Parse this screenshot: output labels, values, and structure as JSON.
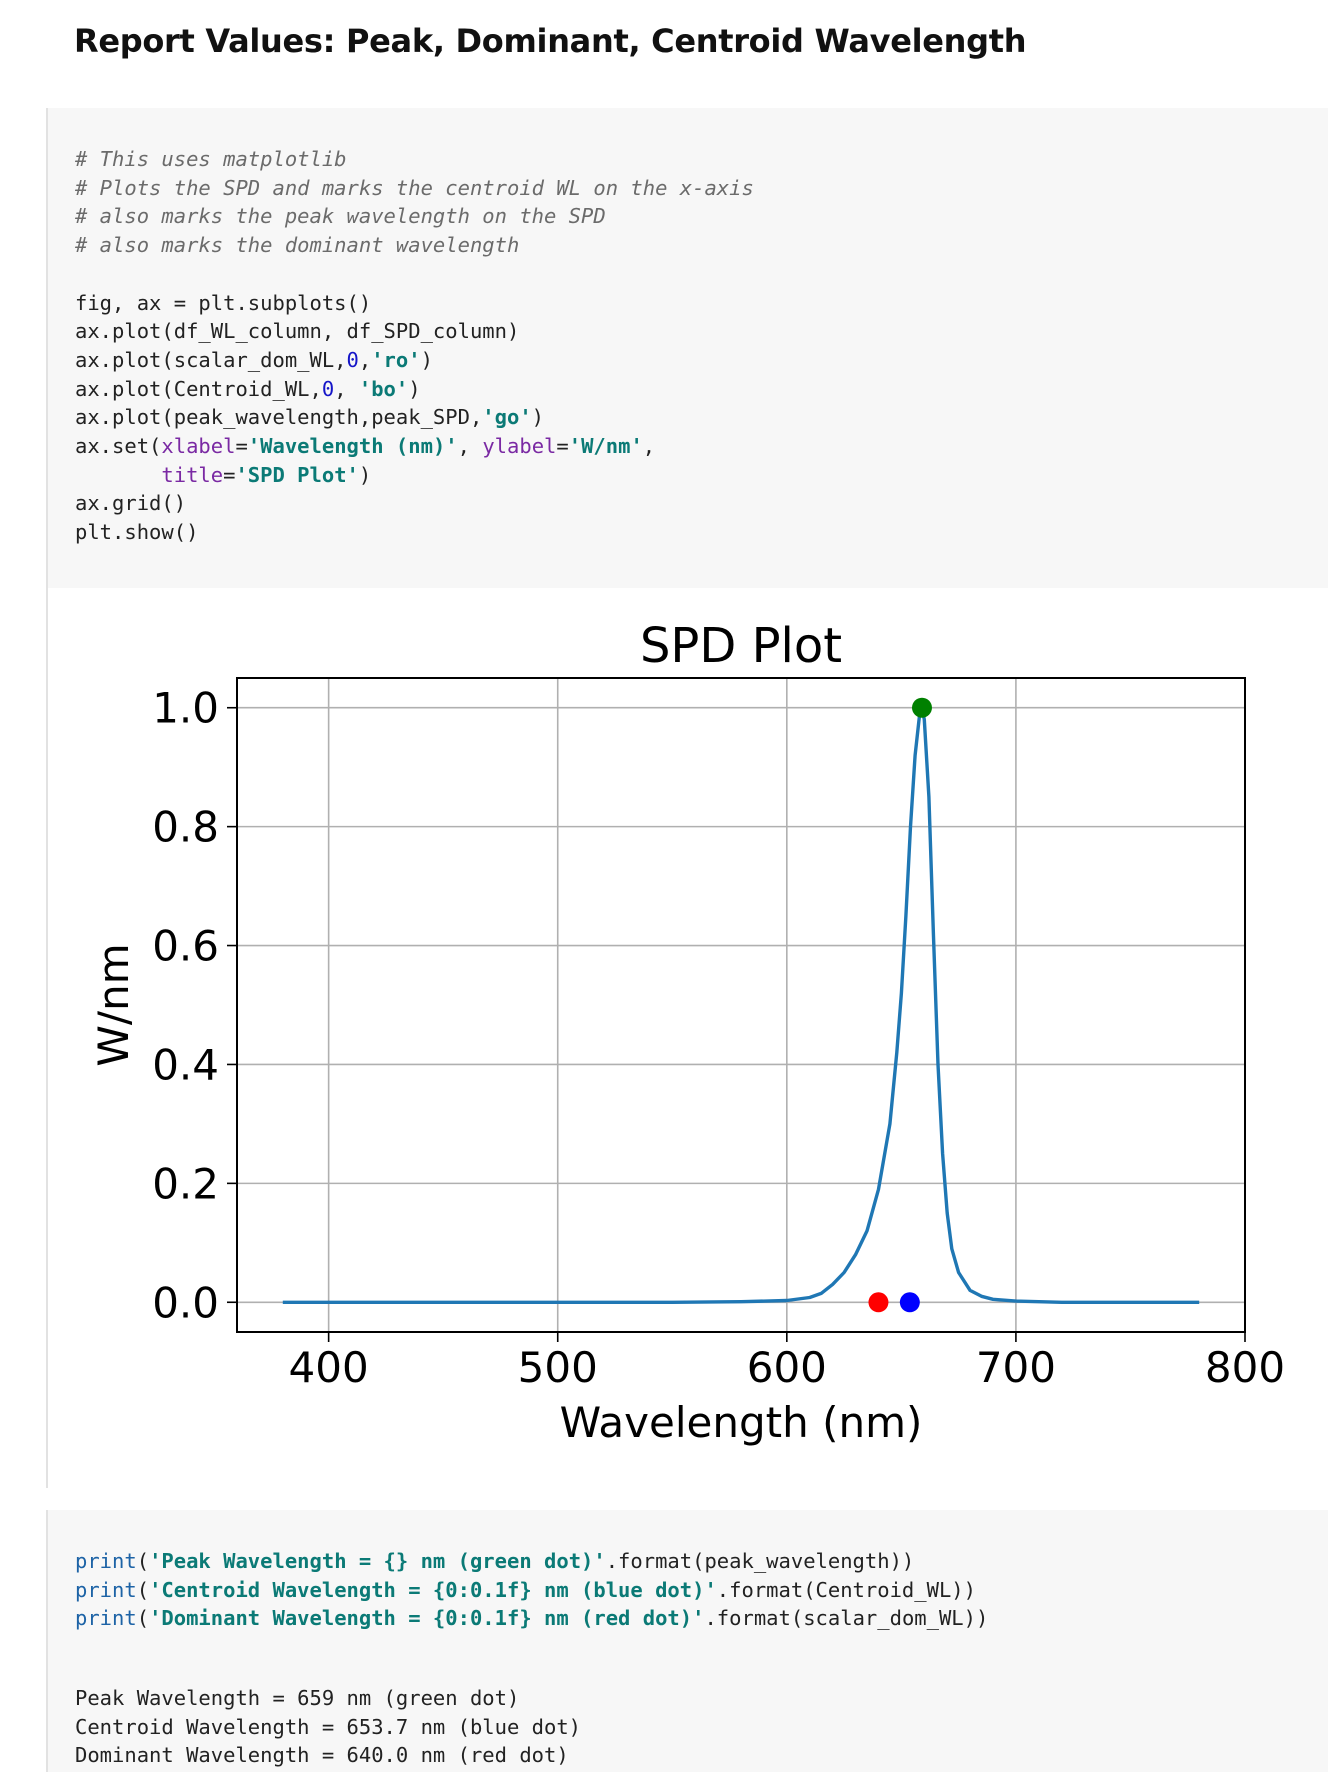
{
  "heading": "Report Values: Peak, Dominant, Centroid Wavelength",
  "code_cell_1": {
    "comment_lines": [
      "# This uses matplotlib",
      "# Plots the SPD and marks the centroid WL on the x-axis",
      "# also marks the peak wavelength on the SPD",
      "# also marks the dominant wavelength"
    ],
    "line_fig": "fig, ax = plt.subplots()",
    "line_plot1": "ax.plot(df_WL_column, df_SPD_column)",
    "line_plot2_pre": "ax.plot(scalar_dom_WL,",
    "line_plot2_num": "0",
    "line_plot2_mid": ",",
    "line_plot2_str": "'ro'",
    "line_plot2_post": ")",
    "line_plot3_pre": "ax.plot(Centroid_WL,",
    "line_plot3_num": "0",
    "line_plot3_mid": ", ",
    "line_plot3_str": "'bo'",
    "line_plot3_post": ")",
    "line_plot4_pre": "ax.plot(peak_wavelength,peak_SPD,",
    "line_plot4_str": "'go'",
    "line_plot4_post": ")",
    "line_set_pre": "ax.set(",
    "line_set_kw1": "xlabel",
    "line_set_eq1": "=",
    "line_set_str1": "'Wavelength (nm)'",
    "line_set_sep": ", ",
    "line_set_kw2": "ylabel",
    "line_set_eq2": "=",
    "line_set_str2": "'W/nm'",
    "line_set_end": ",",
    "line_title_indent": "       ",
    "line_title_kw": "title",
    "line_title_eq": "=",
    "line_title_str": "'SPD Plot'",
    "line_title_post": ")",
    "line_grid": "ax.grid()",
    "line_show": "plt.show()"
  },
  "chart_data": {
    "type": "line",
    "title": "SPD Plot",
    "xlabel": "Wavelength (nm)",
    "ylabel": "W/nm",
    "xlim": [
      360,
      800
    ],
    "ylim": [
      -0.05,
      1.05
    ],
    "xticks": [
      "400",
      "500",
      "600",
      "700",
      "800"
    ],
    "yticks": [
      "0.0",
      "0.2",
      "0.4",
      "0.6",
      "0.8",
      "1.0"
    ],
    "grid": true,
    "series": [
      {
        "color": "#1f77b4",
        "x": [
          380,
          400,
          450,
          500,
          550,
          580,
          600,
          610,
          615,
          620,
          625,
          630,
          635,
          640,
          645,
          648,
          650,
          652,
          654,
          656,
          658,
          659,
          660,
          662,
          664,
          666,
          668,
          670,
          672,
          675,
          680,
          685,
          690,
          700,
          720,
          750,
          780
        ],
        "y": [
          0.0,
          0.0,
          0.0,
          0.0,
          0.0,
          0.001,
          0.003,
          0.008,
          0.015,
          0.03,
          0.05,
          0.08,
          0.12,
          0.19,
          0.3,
          0.42,
          0.52,
          0.65,
          0.8,
          0.92,
          0.99,
          1.0,
          0.98,
          0.85,
          0.62,
          0.4,
          0.25,
          0.15,
          0.09,
          0.05,
          0.02,
          0.01,
          0.005,
          0.002,
          0.0,
          0.0,
          0.0
        ]
      }
    ],
    "markers": [
      {
        "name": "dominant",
        "x": 640.0,
        "y": 0,
        "color": "#ff0000"
      },
      {
        "name": "centroid",
        "x": 653.7,
        "y": 0,
        "color": "#0000ff"
      },
      {
        "name": "peak",
        "x": 659,
        "y": 1.0,
        "color": "#008000"
      }
    ]
  },
  "code_cell_2": {
    "lines": [
      {
        "fn": "print",
        "open": "(",
        "str": "'Peak Wavelength = {} nm (green dot)'",
        "rest": ".format(peak_wavelength))"
      },
      {
        "fn": "print",
        "open": "(",
        "str": "'Centroid Wavelength = {0:0.1f} nm (blue dot)'",
        "rest": ".format(Centroid_WL))"
      },
      {
        "fn": "print",
        "open": "(",
        "str": "'Dominant Wavelength = {0:0.1f} nm (red dot)'",
        "rest": ".format(scalar_dom_WL))"
      }
    ]
  },
  "output": [
    "Peak Wavelength = 659 nm (green dot)",
    "Centroid Wavelength = 653.7 nm (blue dot)",
    "Dominant Wavelength = 640.0 nm (red dot)"
  ]
}
